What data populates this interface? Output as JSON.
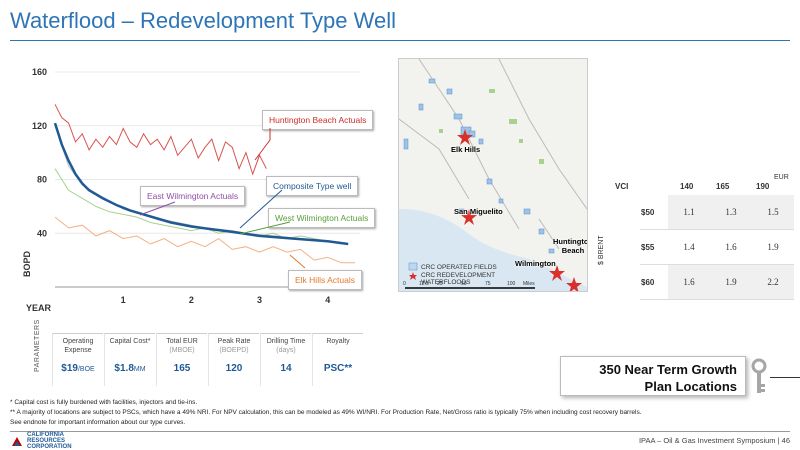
{
  "title": "Waterflood – Redevelopment Type Well",
  "chart_data": {
    "type": "line",
    "ylabel": "BOPD",
    "xlabel": "YEAR",
    "xlim": [
      0,
      4.4
    ],
    "ylim": [
      0,
      160
    ],
    "y_ticks": [
      "40",
      "80",
      "120",
      "160"
    ],
    "x_ticks": [
      "1",
      "2",
      "3",
      "4"
    ],
    "series": [
      {
        "name": "Huntington Beach Actuals",
        "color": "#d9534f",
        "x": [
          0,
          0.1,
          0.2,
          0.3,
          0.4,
          0.5,
          0.6,
          0.7,
          0.8,
          0.9,
          1.0,
          1.1,
          1.2,
          1.3,
          1.4,
          1.5,
          1.6,
          1.7,
          1.8,
          1.9,
          2.0,
          2.1,
          2.2,
          2.3,
          2.4,
          2.5,
          2.6,
          2.7,
          2.8,
          2.9,
          3.0,
          3.1
        ],
        "y": [
          136,
          126,
          122,
          108,
          114,
          102,
          110,
          104,
          112,
          106,
          118,
          108,
          104,
          114,
          106,
          110,
          102,
          112,
          98,
          104,
          110,
          96,
          104,
          110,
          94,
          108,
          104,
          88,
          100,
          84,
          98,
          88
        ]
      },
      {
        "name": "Composite Type well",
        "color": "#1f5a96",
        "x": [
          0,
          0.05,
          0.1,
          0.2,
          0.3,
          0.4,
          0.5,
          0.7,
          0.9,
          1.1,
          1.3,
          1.5,
          1.7,
          2.0,
          2.3,
          2.6,
          3.0,
          3.5,
          4.0,
          4.3
        ],
        "y": [
          122,
          114,
          106,
          94,
          84,
          77,
          72,
          66,
          61,
          57,
          54,
          51,
          48,
          45,
          43,
          41,
          38,
          36,
          34,
          32
        ]
      },
      {
        "name": "East Wilmington Actuals",
        "color": "#c0c0c0",
        "x": [
          0,
          0.2,
          0.4,
          0.6,
          0.8,
          1.0,
          1.2,
          1.4,
          1.6,
          1.8,
          2.0,
          2.2,
          2.4,
          2.6,
          2.8,
          3.0,
          3.2,
          3.4,
          3.6,
          3.8,
          4.0
        ],
        "y": [
          120,
          90,
          76,
          70,
          64,
          58,
          55,
          52,
          50,
          48,
          46,
          44,
          43,
          42,
          40,
          39,
          38,
          37,
          36,
          35,
          34
        ]
      },
      {
        "name": "West Wilmington Actuals",
        "color": "#a9d18e",
        "x": [
          0,
          0.2,
          0.4,
          0.6,
          0.8,
          1.0,
          1.2,
          1.4,
          1.6,
          1.8,
          2.0,
          2.2,
          2.4,
          2.6,
          2.8,
          3.0,
          3.2,
          3.4,
          3.6,
          3.8,
          4.0,
          4.2
        ],
        "y": [
          88,
          72,
          66,
          60,
          56,
          54,
          52,
          48,
          46,
          44,
          42,
          44,
          40,
          42,
          40,
          38,
          40,
          36,
          38,
          36,
          34,
          32
        ]
      },
      {
        "name": "Elk Hills Actuals",
        "color": "#f4b183",
        "x": [
          0,
          0.2,
          0.4,
          0.6,
          0.8,
          1.0,
          1.2,
          1.4,
          1.6,
          1.8,
          2.0,
          2.2,
          2.4,
          2.6,
          2.8,
          3.0,
          3.2,
          3.4,
          3.6,
          3.8,
          4.0,
          4.2,
          4.4
        ],
        "y": [
          52,
          44,
          46,
          38,
          42,
          36,
          38,
          32,
          36,
          30,
          34,
          30,
          36,
          28,
          30,
          26,
          30,
          26,
          28,
          20,
          22,
          18,
          18
        ]
      }
    ]
  },
  "callouts": {
    "hb": "Huntington Beach Actuals",
    "composite": "Composite Type well",
    "east": "East Wilmington Actuals",
    "west": "West Wilmington Actuals",
    "elk": "Elk Hills Actuals"
  },
  "map": {
    "cities": [
      "Elk Hills",
      "San Miguelito",
      "Huntington Beach",
      "Wilmington"
    ],
    "legend": [
      "CRC OPERATED FIELDS",
      "CRC REDEVELOPMENT",
      "WATERFLOODS"
    ],
    "scale": [
      "0",
      "12.5",
      "25",
      "50",
      "75",
      "100",
      "Miles"
    ]
  },
  "sensitivity": {
    "eur_label": "EUR",
    "vci_label": "VCI",
    "brent_label": "$ BRENT",
    "columns": [
      "140",
      "165",
      "190"
    ],
    "rows": [
      {
        "label": "$50",
        "values": [
          "1.1",
          "1.3",
          "1.5"
        ]
      },
      {
        "label": "$55",
        "values": [
          "1.4",
          "1.6",
          "1.9"
        ]
      },
      {
        "label": "$60",
        "values": [
          "1.6",
          "1.9",
          "2.2"
        ]
      }
    ]
  },
  "params": {
    "label": "PARAMETERS",
    "items": [
      {
        "label": "Operating Expense",
        "sub": "",
        "value": "$19",
        "unit": "/BOE"
      },
      {
        "label": "Capital Cost*",
        "sub": "",
        "value": "$1.8",
        "unit": "MM"
      },
      {
        "label": "Total EUR",
        "sub": "(MBOE)",
        "value": "165",
        "unit": ""
      },
      {
        "label": "Peak Rate",
        "sub": "(BOEPD)",
        "value": "120",
        "unit": ""
      },
      {
        "label": "Drilling Time",
        "sub": "(days)",
        "value": "14",
        "unit": ""
      },
      {
        "label": "Royalty",
        "sub": "",
        "value": "PSC**",
        "unit": ""
      }
    ]
  },
  "growth": {
    "line1": "350 Near Term Growth",
    "line2": "Plan Locations"
  },
  "footnotes": [
    "* Capital cost is fully burdened with facilities, injectors and tie-ins.",
    "** A majority of locations are subject to PSCs, which have a 49% NRI. For NPV calculation, this can be modeled as 49% WI/NRI. For Production Rate, Net/Gross ratio is typically 75% when including cost recovery barrels.",
    "See endnote for important information about our type curves."
  ],
  "footer": "IPAA – Oil & Gas Investment Symposium | 46",
  "logo": [
    "CALIFORNIA",
    "RESOURCES",
    "CORPORATION"
  ],
  "colors": {
    "accent": "#2e75b6",
    "composite": "#1f5a96",
    "hb": "#d9534f"
  }
}
